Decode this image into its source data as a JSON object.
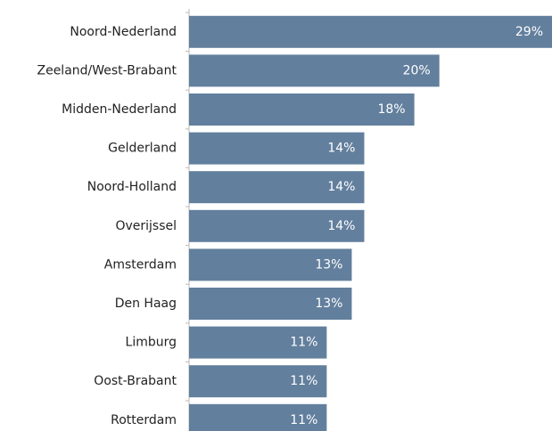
{
  "chart_data": {
    "type": "barh",
    "categories": [
      "Noord-Nederland",
      "Zeeland/West-Brabant",
      "Midden-Nederland",
      "Gelderland",
      "Noord-Holland",
      "Overijssel",
      "Amsterdam",
      "Den Haag",
      "Limburg",
      "Oost-Brabant",
      "Rotterdam"
    ],
    "values": [
      29,
      20,
      18,
      14,
      14,
      14,
      13,
      13,
      11,
      11,
      11
    ],
    "value_labels": [
      "29%",
      "20%",
      "18%",
      "14%",
      "14%",
      "14%",
      "13%",
      "13%",
      "11%",
      "11%",
      "11%"
    ],
    "color": "#627f9d"
  }
}
